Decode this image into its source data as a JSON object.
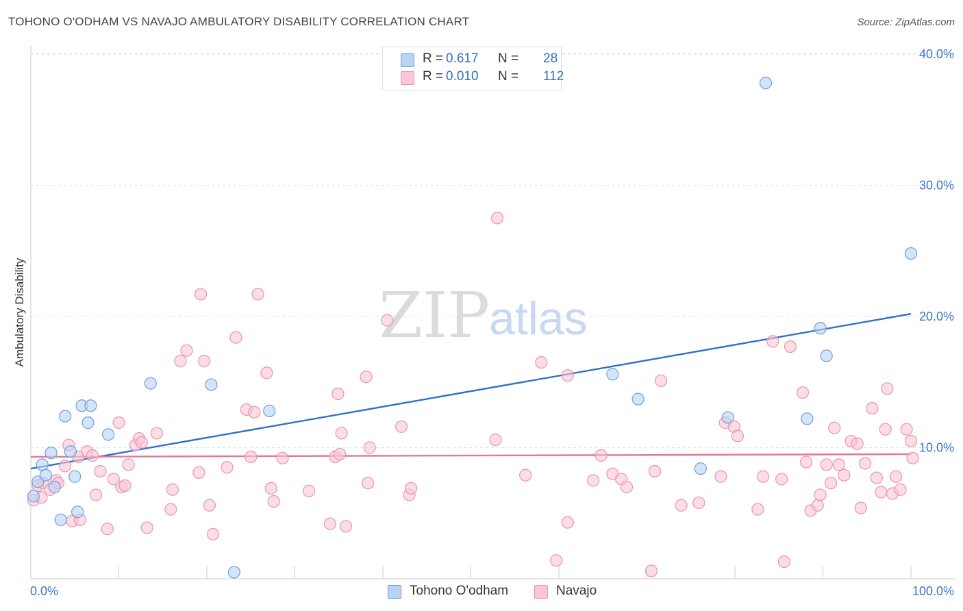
{
  "title": "TOHONO O'ODHAM VS NAVAJO AMBULATORY DISABILITY CORRELATION CHART",
  "source": "Source: ZipAtlas.com",
  "watermark": {
    "zip": "ZIP",
    "atlas": "atlas"
  },
  "legend": {
    "items": [
      {
        "r_label": "R =",
        "r_value": "0.617",
        "n_label": "N =",
        "n_value": "28"
      },
      {
        "r_label": "R =",
        "r_value": "0.010",
        "n_label": "N =",
        "n_value": "112"
      }
    ]
  },
  "chart_data": {
    "type": "scatter",
    "title": "TOHONO O'ODHAM VS NAVAJO AMBULATORY DISABILITY CORRELATION CHART",
    "xlabel": "",
    "ylabel": "Ambulatory Disability",
    "xlim": [
      0,
      100
    ],
    "ylim": [
      0,
      40
    ],
    "x_tick_labels": [
      "0.0%",
      "100.0%"
    ],
    "y_ticks": [
      10,
      20,
      30,
      40
    ],
    "y_tick_labels": [
      "10.0%",
      "20.0%",
      "30.0%",
      "40.0%"
    ],
    "grid": true,
    "colors": {
      "tohono_fill": "#b9d3f5",
      "tohono_stroke": "#6c9fd9",
      "tohono_line": "#2f6fcf",
      "navajo_fill": "#f9c7d6",
      "navajo_stroke": "#ec93ae",
      "navajo_line": "#e8739c",
      "axis_text": "#3a74c8"
    },
    "series": [
      {
        "name": "Tohono O'odham",
        "r": 0.617,
        "n": 28,
        "trend": {
          "x": [
            0,
            100
          ],
          "y": [
            8.4,
            20.2
          ]
        },
        "points": [
          [
            0.3,
            6.3
          ],
          [
            0.8,
            7.4
          ],
          [
            1.3,
            8.7
          ],
          [
            1.7,
            7.9
          ],
          [
            2.3,
            9.6
          ],
          [
            2.7,
            7.0
          ],
          [
            3.4,
            4.5
          ],
          [
            3.9,
            12.4
          ],
          [
            4.5,
            9.7
          ],
          [
            5.0,
            7.8
          ],
          [
            5.3,
            5.1
          ],
          [
            5.8,
            13.2
          ],
          [
            6.5,
            11.9
          ],
          [
            6.8,
            13.2
          ],
          [
            8.8,
            11.0
          ],
          [
            13.6,
            14.9
          ],
          [
            20.5,
            14.8
          ],
          [
            23.1,
            0.5
          ],
          [
            27.1,
            12.8
          ],
          [
            66.1,
            15.6
          ],
          [
            69.0,
            13.7
          ],
          [
            76.1,
            8.4
          ],
          [
            79.2,
            12.3
          ],
          [
            83.5,
            37.8
          ],
          [
            88.2,
            12.2
          ],
          [
            89.7,
            19.1
          ],
          [
            90.4,
            17.0
          ],
          [
            100.0,
            24.8
          ]
        ]
      },
      {
        "name": "Navajo",
        "r": 0.01,
        "n": 112,
        "trend": {
          "x": [
            0,
            100
          ],
          "y": [
            9.3,
            9.5
          ]
        },
        "points": [
          [
            0.3,
            6.0
          ],
          [
            0.8,
            7.1
          ],
          [
            1.2,
            6.2
          ],
          [
            1.4,
            7.3
          ],
          [
            2.2,
            6.8
          ],
          [
            2.9,
            7.5
          ],
          [
            3.1,
            7.3
          ],
          [
            3.9,
            8.6
          ],
          [
            4.3,
            10.2
          ],
          [
            4.7,
            4.4
          ],
          [
            5.4,
            9.3
          ],
          [
            5.6,
            4.5
          ],
          [
            6.4,
            9.7
          ],
          [
            7.0,
            9.4
          ],
          [
            7.4,
            6.4
          ],
          [
            7.9,
            8.2
          ],
          [
            8.7,
            3.8
          ],
          [
            9.4,
            7.6
          ],
          [
            10.0,
            11.9
          ],
          [
            10.3,
            7.0
          ],
          [
            10.7,
            7.1
          ],
          [
            11.1,
            8.7
          ],
          [
            11.9,
            10.2
          ],
          [
            12.3,
            10.7
          ],
          [
            12.6,
            10.4
          ],
          [
            13.2,
            3.9
          ],
          [
            14.3,
            11.1
          ],
          [
            15.9,
            5.3
          ],
          [
            16.1,
            6.8
          ],
          [
            17.0,
            16.6
          ],
          [
            17.7,
            17.4
          ],
          [
            19.1,
            8.1
          ],
          [
            19.3,
            21.7
          ],
          [
            19.7,
            16.6
          ],
          [
            20.3,
            5.6
          ],
          [
            20.7,
            3.4
          ],
          [
            22.3,
            8.5
          ],
          [
            23.3,
            18.4
          ],
          [
            24.5,
            12.9
          ],
          [
            25.0,
            9.3
          ],
          [
            25.4,
            12.7
          ],
          [
            25.8,
            21.7
          ],
          [
            26.8,
            15.7
          ],
          [
            27.3,
            6.9
          ],
          [
            27.6,
            5.9
          ],
          [
            28.6,
            9.2
          ],
          [
            31.6,
            6.7
          ],
          [
            34.0,
            4.2
          ],
          [
            34.6,
            9.3
          ],
          [
            35.1,
            9.5
          ],
          [
            34.9,
            14.1
          ],
          [
            35.3,
            11.1
          ],
          [
            35.8,
            4.0
          ],
          [
            38.1,
            15.4
          ],
          [
            38.3,
            7.3
          ],
          [
            38.5,
            10.0
          ],
          [
            40.5,
            19.7
          ],
          [
            42.1,
            11.6
          ],
          [
            43.0,
            6.4
          ],
          [
            43.2,
            6.9
          ],
          [
            52.8,
            10.6
          ],
          [
            53.0,
            27.5
          ],
          [
            56.2,
            7.9
          ],
          [
            58.0,
            16.5
          ],
          [
            59.7,
            1.4
          ],
          [
            61.0,
            15.5
          ],
          [
            61.0,
            4.3
          ],
          [
            63.9,
            7.5
          ],
          [
            64.8,
            9.4
          ],
          [
            66.1,
            8.0
          ],
          [
            67.1,
            7.6
          ],
          [
            67.7,
            7.0
          ],
          [
            70.5,
            0.6
          ],
          [
            70.9,
            8.2
          ],
          [
            71.6,
            15.1
          ],
          [
            73.9,
            5.6
          ],
          [
            75.9,
            5.8
          ],
          [
            78.4,
            7.8
          ],
          [
            78.9,
            11.9
          ],
          [
            79.9,
            11.6
          ],
          [
            80.3,
            10.9
          ],
          [
            82.6,
            5.3
          ],
          [
            83.2,
            7.8
          ],
          [
            84.3,
            18.1
          ],
          [
            85.3,
            7.6
          ],
          [
            85.6,
            1.3
          ],
          [
            86.3,
            17.7
          ],
          [
            87.7,
            14.2
          ],
          [
            88.1,
            8.9
          ],
          [
            88.6,
            5.2
          ],
          [
            89.4,
            5.6
          ],
          [
            89.7,
            6.4
          ],
          [
            90.4,
            8.7
          ],
          [
            90.9,
            7.3
          ],
          [
            91.3,
            11.5
          ],
          [
            91.8,
            8.7
          ],
          [
            92.4,
            7.9
          ],
          [
            93.2,
            10.5
          ],
          [
            93.9,
            10.3
          ],
          [
            94.3,
            5.4
          ],
          [
            94.8,
            8.8
          ],
          [
            95.6,
            13.0
          ],
          [
            96.1,
            7.7
          ],
          [
            96.6,
            6.6
          ],
          [
            97.1,
            11.4
          ],
          [
            97.9,
            6.5
          ],
          [
            98.3,
            7.8
          ],
          [
            98.8,
            6.8
          ],
          [
            99.5,
            11.4
          ],
          [
            100.0,
            10.5
          ],
          [
            97.3,
            14.5
          ],
          [
            100.2,
            9.2
          ]
        ]
      }
    ]
  }
}
